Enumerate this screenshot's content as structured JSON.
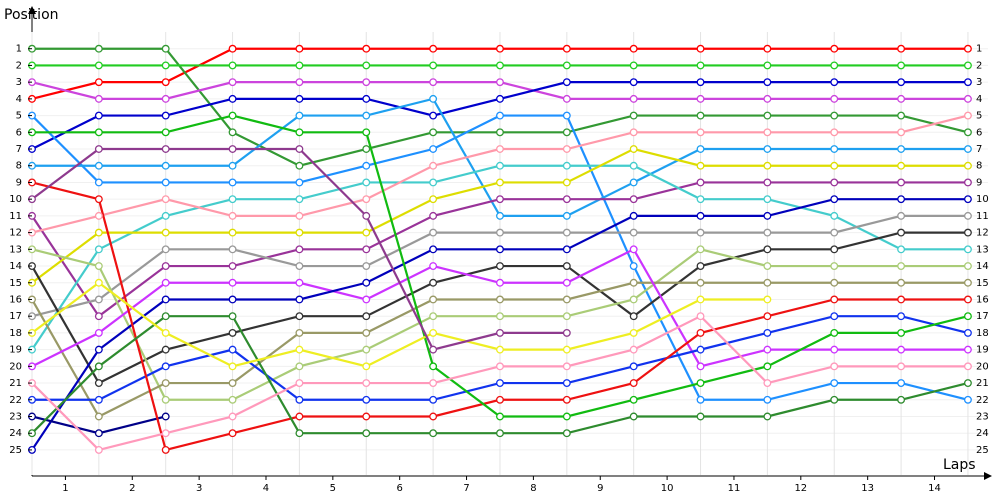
{
  "chart_data": {
    "type": "line",
    "y_label": "Position",
    "x_label": "Laps",
    "x": [
      0,
      1,
      2,
      3,
      4,
      5,
      6,
      7,
      8,
      9,
      10,
      11,
      12,
      13,
      14
    ],
    "xlim": [
      0,
      14.3
    ],
    "xticks": [
      {
        "value": 0.5,
        "label": "1"
      },
      {
        "value": 1.5,
        "label": "2"
      },
      {
        "value": 2.5,
        "label": "3"
      },
      {
        "value": 3.5,
        "label": "4"
      },
      {
        "value": 4.5,
        "label": "5"
      },
      {
        "value": 5.5,
        "label": "6"
      },
      {
        "value": 6.5,
        "label": "7"
      },
      {
        "value": 7.5,
        "label": "8"
      },
      {
        "value": 8.5,
        "label": "9"
      },
      {
        "value": 9.5,
        "label": "10"
      },
      {
        "value": 10.5,
        "label": "11"
      },
      {
        "value": 11.5,
        "label": "12"
      },
      {
        "value": 12.5,
        "label": "13"
      },
      {
        "value": 13.5,
        "label": "14"
      }
    ],
    "ylim": [
      26.5,
      0
    ],
    "yticks": [
      1,
      2,
      3,
      4,
      5,
      6,
      7,
      8,
      9,
      10,
      11,
      12,
      13,
      14,
      15,
      16,
      17,
      18,
      19,
      20,
      21,
      22,
      23,
      24,
      25
    ],
    "grid": true,
    "series": [
      {
        "color": "#ff0000",
        "values": [
          4,
          3,
          3,
          1,
          1,
          1,
          1,
          1,
          1,
          1,
          1,
          1,
          1,
          1,
          1
        ]
      },
      {
        "color": "#339933",
        "values": [
          1,
          1,
          1,
          6,
          8,
          7,
          6,
          6,
          6,
          5,
          5,
          5,
          5,
          5,
          6
        ]
      },
      {
        "color": "#22cc22",
        "values": [
          2,
          2,
          2,
          2,
          2,
          2,
          2,
          2,
          2,
          2,
          2,
          2,
          2,
          2,
          2
        ]
      },
      {
        "color": "#cc44dd",
        "values": [
          3,
          4,
          4,
          3,
          3,
          3,
          3,
          3,
          4,
          4,
          4,
          4,
          4,
          4,
          4
        ]
      },
      {
        "color": "#0000cc",
        "values": [
          7,
          5,
          5,
          4,
          4,
          4,
          5,
          4,
          3,
          3,
          3,
          3,
          3,
          3,
          3
        ]
      },
      {
        "color": "#1e90ff",
        "values": [
          5,
          9,
          9,
          9,
          9,
          8,
          7,
          5,
          5,
          14,
          22,
          22,
          21,
          21,
          22
        ]
      },
      {
        "color": "#1ea0f0",
        "values": [
          8,
          8,
          8,
          8,
          5,
          5,
          4,
          11,
          11,
          9,
          7,
          7,
          7,
          7,
          7
        ]
      },
      {
        "color": "#993399",
        "values": [
          11,
          17,
          14,
          14,
          13,
          13,
          11,
          10,
          10,
          10,
          9,
          9,
          9,
          9,
          9
        ]
      },
      {
        "color": "#44cccc",
        "values": [
          19,
          13,
          11,
          10,
          10,
          9,
          9,
          8,
          8,
          8,
          10,
          10,
          11,
          13,
          13
        ]
      },
      {
        "color": "#ff99aa",
        "values": [
          12,
          11,
          10,
          11,
          11,
          10,
          8,
          7,
          7,
          6,
          6,
          6,
          6,
          6,
          5
        ]
      },
      {
        "color": "#dddd00",
        "values": [
          15,
          12,
          12,
          12,
          12,
          12,
          10,
          9,
          9,
          7,
          8,
          8,
          8,
          8,
          8
        ]
      },
      {
        "color": "#999999",
        "values": [
          17,
          16,
          13,
          13,
          14,
          14,
          12,
          12,
          12,
          12,
          12,
          12,
          12,
          11,
          11
        ]
      },
      {
        "color": "#333333",
        "values": [
          14,
          21,
          19,
          18,
          17,
          17,
          15,
          14,
          14,
          17,
          14,
          13,
          13,
          12,
          12
        ]
      },
      {
        "color": "#aacc77",
        "values": [
          13,
          14,
          22,
          22,
          20,
          19,
          17,
          17,
          17,
          16,
          13,
          14,
          14,
          14,
          14
        ]
      },
      {
        "color": "#999966",
        "values": [
          16,
          23,
          21,
          21,
          18,
          18,
          16,
          16,
          16,
          15,
          15,
          15,
          15,
          15,
          15
        ]
      },
      {
        "color": "#cc33ff",
        "values": [
          20,
          18,
          15,
          15,
          15,
          16,
          14,
          15,
          15,
          13,
          20,
          19,
          19,
          19,
          19
        ]
      },
      {
        "color": "#0000bb",
        "values": [
          25,
          19,
          16,
          16,
          16,
          15,
          13,
          13,
          13,
          11,
          11,
          11,
          10,
          10,
          10
        ]
      },
      {
        "color": "#1133ee",
        "values": [
          22,
          22,
          20,
          19,
          22,
          22,
          22,
          21,
          21,
          20,
          19,
          18,
          17,
          17,
          18
        ]
      },
      {
        "color": "#000088",
        "values": [
          23,
          24,
          23,
          null,
          null,
          null,
          null,
          null,
          null,
          null,
          null,
          null,
          null,
          null,
          null
        ]
      },
      {
        "color": "#ee1111",
        "values": [
          9,
          10,
          25,
          24,
          23,
          23,
          23,
          22,
          22,
          21,
          18,
          17,
          16,
          16,
          16
        ]
      },
      {
        "color": "#11bb11",
        "values": [
          6,
          6,
          6,
          5,
          6,
          6,
          20,
          23,
          23,
          22,
          21,
          20,
          18,
          18,
          17
        ]
      },
      {
        "color": "#2e8b2e",
        "values": [
          24,
          20,
          17,
          17,
          24,
          24,
          24,
          24,
          24,
          23,
          23,
          23,
          22,
          22,
          21
        ]
      },
      {
        "color": "#ff99bb",
        "values": [
          21,
          25,
          24,
          23,
          21,
          21,
          21,
          20,
          20,
          19,
          17,
          21,
          20,
          20,
          20
        ]
      },
      {
        "color": "#eeee22",
        "values": [
          18,
          15,
          18,
          20,
          19,
          20,
          18,
          19,
          19,
          18,
          16,
          16,
          null,
          null,
          null
        ]
      },
      {
        "color": "#8e3a8e",
        "values": [
          10,
          7,
          7,
          7,
          7,
          11,
          19,
          18,
          18,
          null,
          null,
          null,
          null,
          null,
          null
        ]
      }
    ]
  }
}
